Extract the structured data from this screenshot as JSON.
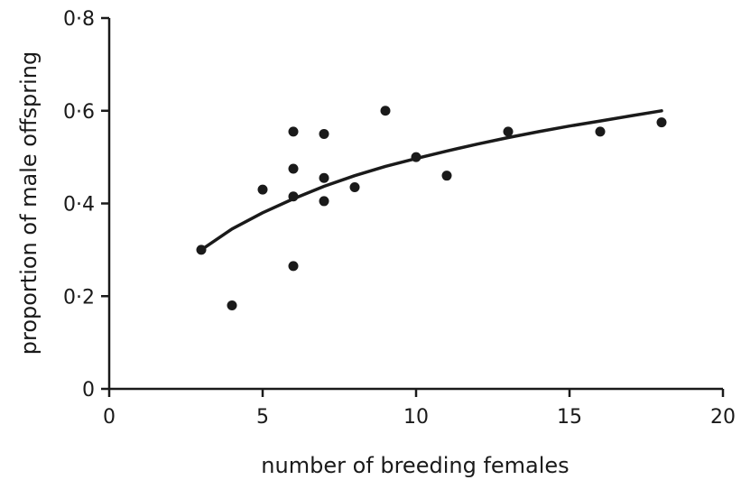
{
  "chart_data": {
    "type": "scatter",
    "title": "",
    "xlabel": "number of breeding females",
    "ylabel": "proportion of male offspring",
    "xlim": [
      0,
      20
    ],
    "ylim": [
      0,
      0.8
    ],
    "x_ticks": [
      0,
      5,
      10,
      15,
      20
    ],
    "y_ticks": [
      0,
      0.2,
      0.4,
      0.6,
      0.8
    ],
    "x_tick_labels": [
      "0",
      "5",
      "10",
      "15",
      "20"
    ],
    "y_tick_labels": [
      "0",
      "0·2",
      "0·4",
      "0·6",
      "0·8"
    ],
    "grid": false,
    "legend": "none",
    "points": [
      {
        "x": 3,
        "y": 0.3
      },
      {
        "x": 4,
        "y": 0.18
      },
      {
        "x": 5,
        "y": 0.43
      },
      {
        "x": 6,
        "y": 0.555
      },
      {
        "x": 6,
        "y": 0.475
      },
      {
        "x": 6,
        "y": 0.415
      },
      {
        "x": 6,
        "y": 0.265
      },
      {
        "x": 7,
        "y": 0.55
      },
      {
        "x": 7,
        "y": 0.455
      },
      {
        "x": 7,
        "y": 0.405
      },
      {
        "x": 8,
        "y": 0.435
      },
      {
        "x": 9,
        "y": 0.6
      },
      {
        "x": 10,
        "y": 0.5
      },
      {
        "x": 11,
        "y": 0.46
      },
      {
        "x": 13,
        "y": 0.555
      },
      {
        "x": 16,
        "y": 0.555
      },
      {
        "x": 18,
        "y": 0.575
      }
    ],
    "fitted_curve": {
      "x": [
        3,
        4,
        5,
        6,
        7,
        8,
        9,
        10,
        11,
        12,
        13,
        14,
        15,
        16,
        17,
        18
      ],
      "y": [
        0.3,
        0.345,
        0.38,
        0.41,
        0.437,
        0.46,
        0.48,
        0.497,
        0.513,
        0.528,
        0.542,
        0.555,
        0.567,
        0.578,
        0.589,
        0.6
      ]
    },
    "colors": {
      "ink": "#1a1a1a"
    }
  }
}
